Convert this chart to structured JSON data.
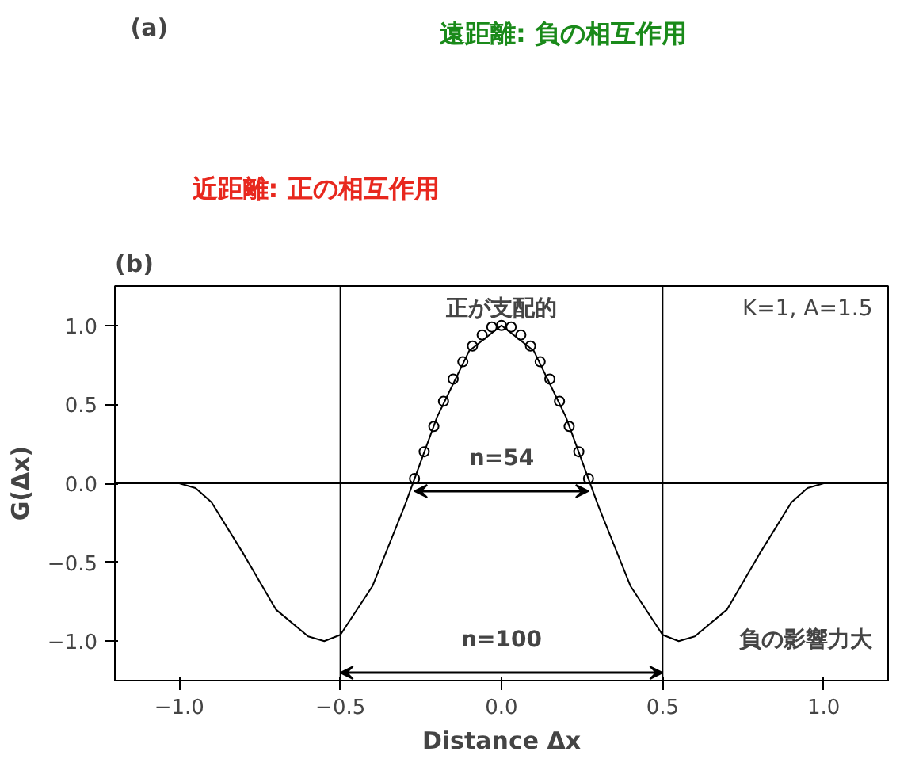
{
  "chart_data": [
    {
      "type": "other",
      "title": "(a)",
      "annotations": [
        "遠距離: 負の相互作用",
        "近距離: 正の相互作用"
      ]
    },
    {
      "type": "line",
      "title": "(b)",
      "xlabel": "Distance Δx",
      "ylabel": "G(Δx)",
      "xlim": [
        -1.2,
        1.2
      ],
      "ylim": [
        -1.25,
        1.25
      ],
      "xticks": [
        {
          "value": -1.0,
          "label": "−1.0"
        },
        {
          "value": -0.5,
          "label": "−0.5"
        },
        {
          "value": 0.0,
          "label": "0.0"
        },
        {
          "value": 0.5,
          "label": "0.5"
        },
        {
          "value": 1.0,
          "label": "1.0"
        }
      ],
      "yticks": [
        {
          "value": -1.0,
          "label": "−1.0"
        },
        {
          "value": -0.5,
          "label": "−0.5"
        },
        {
          "value": 0.0,
          "label": "0.0"
        },
        {
          "value": 0.5,
          "label": "0.5"
        },
        {
          "value": 1.0,
          "label": "1.0"
        }
      ],
      "grid": false,
      "series": [
        {
          "type": "line",
          "color": "#000000",
          "x": [
            -1.2,
            -1.1,
            -1.0,
            -0.95,
            -0.9,
            -0.8,
            -0.7,
            -0.6,
            -0.55,
            -0.5,
            -0.4,
            -0.3,
            -0.2,
            -0.1,
            0.0,
            0.1,
            0.2,
            0.3,
            0.4,
            0.5,
            0.55,
            0.6,
            0.7,
            0.8,
            0.9,
            0.95,
            1.0,
            1.1,
            1.2
          ],
          "values": [
            0,
            0,
            0,
            -0.03,
            -0.12,
            -0.45,
            -0.8,
            -0.97,
            -1.0,
            -0.96,
            -0.65,
            -0.14,
            0.42,
            0.84,
            1.0,
            0.84,
            0.42,
            -0.14,
            -0.65,
            -0.96,
            -1.0,
            -0.97,
            -0.8,
            -0.45,
            -0.12,
            -0.03,
            0,
            0,
            0
          ]
        },
        {
          "type": "scatter",
          "marker": "circle",
          "color": "#000000",
          "x": [
            -0.27,
            -0.24,
            -0.21,
            -0.18,
            -0.15,
            -0.12,
            -0.09,
            -0.06,
            -0.03,
            0.0,
            0.03,
            0.06,
            0.09,
            0.12,
            0.15,
            0.18,
            0.21,
            0.24,
            0.27
          ],
          "values": [
            0.03,
            0.2,
            0.36,
            0.52,
            0.66,
            0.77,
            0.87,
            0.94,
            0.99,
            1.0,
            0.99,
            0.94,
            0.87,
            0.77,
            0.66,
            0.52,
            0.36,
            0.2,
            0.03
          ]
        }
      ],
      "ref_lines": [
        {
          "axis": "y",
          "value": 0
        },
        {
          "axis": "x",
          "value": -0.5
        },
        {
          "axis": "x",
          "value": 0.5
        }
      ],
      "annotations": [
        "正が支配的",
        "K=1, A=1.5",
        "n=54",
        "n=100",
        "負の影響力大"
      ]
    }
  ]
}
